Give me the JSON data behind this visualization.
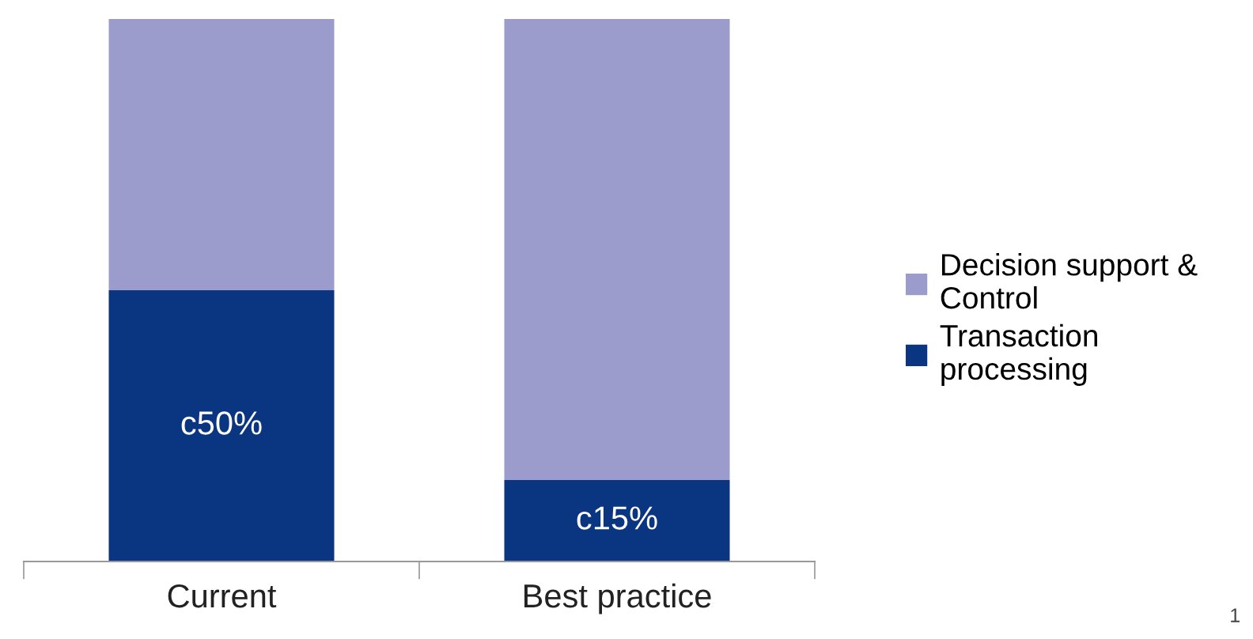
{
  "chart_data": {
    "type": "bar",
    "stacked": true,
    "categories": [
      "Current",
      "Best practice"
    ],
    "series": [
      {
        "name": "Transaction processing",
        "color": "#0a3580",
        "values": [
          50,
          15
        ],
        "value_labels": [
          "c50%",
          "c15%"
        ]
      },
      {
        "name": "Decision support & Control",
        "color": "#9b9bcc",
        "values": [
          50,
          85
        ]
      }
    ],
    "ylim": [
      0,
      100
    ],
    "tick_labels": "x",
    "legend": "right",
    "annotations": [
      "1"
    ]
  }
}
